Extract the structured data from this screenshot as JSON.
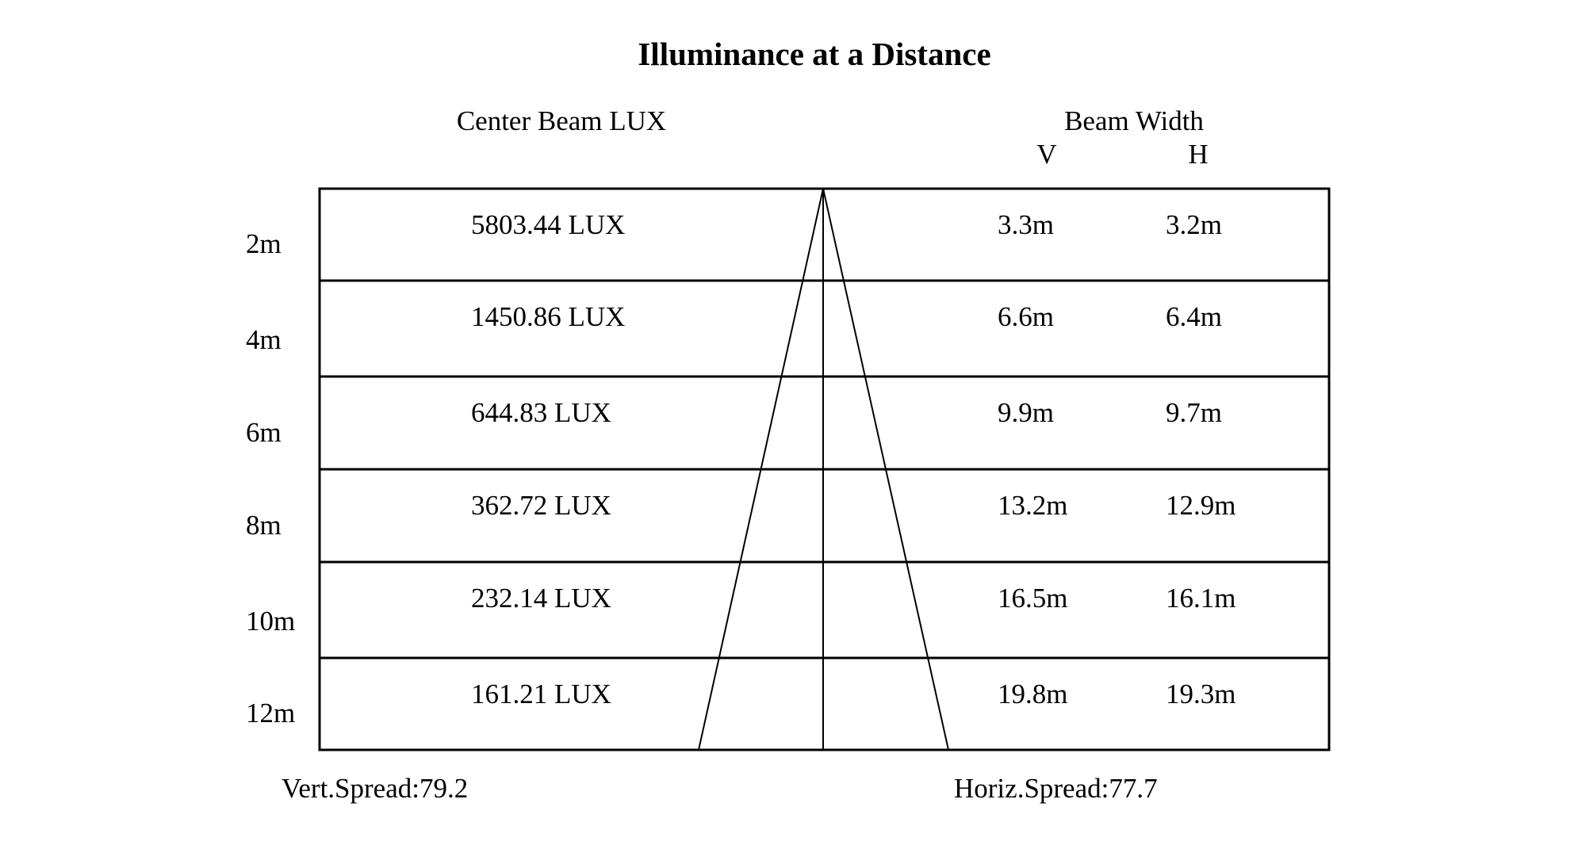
{
  "title": "Illuminance at a Distance",
  "headers": {
    "center_beam": "Center Beam LUX",
    "beam_width": "Beam Width",
    "v": "V",
    "h": "H"
  },
  "rows": [
    {
      "distance": "2m",
      "lux": "5803.44 LUX",
      "v": "3.3m",
      "h": "3.2m"
    },
    {
      "distance": "4m",
      "lux": "1450.86 LUX",
      "v": "6.6m",
      "h": "6.4m"
    },
    {
      "distance": "6m",
      "lux": "644.83 LUX",
      "v": "9.9m",
      "h": "9.7m"
    },
    {
      "distance": "8m",
      "lux": "362.72 LUX",
      "v": "13.2m",
      "h": "12.9m"
    },
    {
      "distance": "10m",
      "lux": "232.14 LUX",
      "v": "16.5m",
      "h": "16.1m"
    },
    {
      "distance": "12m",
      "lux": "161.21 LUX",
      "v": "19.8m",
      "h": "19.3m"
    }
  ],
  "footer": {
    "vert_spread": "Vert.Spread:79.2",
    "horiz_spread": "Horiz.Spread:77.7"
  }
}
